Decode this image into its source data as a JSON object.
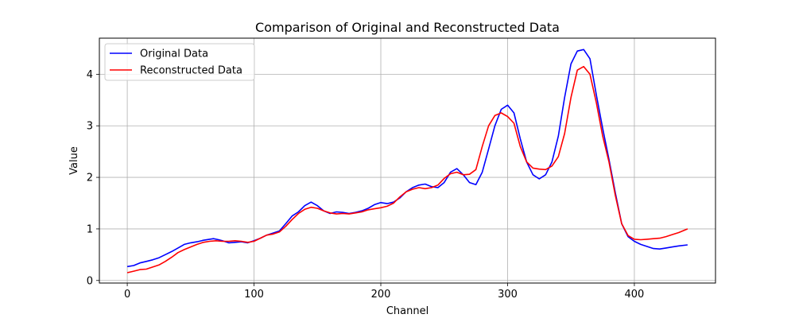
{
  "chart_data": {
    "type": "line",
    "title": "Comparison of Original and Reconstructed Data",
    "xlabel": "Channel",
    "ylabel": "Value",
    "xlim": [
      -22,
      464
    ],
    "ylim": [
      -0.05,
      4.7
    ],
    "grid": true,
    "legend_position": "top-left",
    "x_ticks": [
      0,
      100,
      200,
      300,
      400
    ],
    "y_ticks": [
      0,
      1,
      2,
      3,
      4
    ],
    "series": [
      {
        "name": "Original Data",
        "color": "#0000ff",
        "x": [
          0,
          5,
          10,
          15,
          20,
          25,
          30,
          35,
          40,
          45,
          50,
          55,
          60,
          65,
          68,
          72,
          75,
          80,
          85,
          90,
          95,
          100,
          105,
          110,
          115,
          120,
          125,
          130,
          135,
          140,
          145,
          150,
          155,
          160,
          165,
          170,
          175,
          180,
          185,
          190,
          195,
          200,
          205,
          210,
          215,
          220,
          225,
          230,
          235,
          240,
          245,
          250,
          255,
          260,
          265,
          270,
          275,
          280,
          285,
          290,
          295,
          300,
          305,
          310,
          315,
          320,
          325,
          330,
          335,
          340,
          345,
          350,
          355,
          360,
          365,
          370,
          375,
          380,
          385,
          390,
          395,
          400,
          405,
          410,
          415,
          420,
          425,
          430,
          435,
          442
        ],
        "values": [
          0.27,
          0.29,
          0.34,
          0.37,
          0.4,
          0.44,
          0.5,
          0.56,
          0.63,
          0.7,
          0.73,
          0.75,
          0.78,
          0.8,
          0.81,
          0.79,
          0.77,
          0.73,
          0.74,
          0.75,
          0.73,
          0.77,
          0.82,
          0.88,
          0.92,
          0.96,
          1.1,
          1.25,
          1.33,
          1.45,
          1.52,
          1.45,
          1.35,
          1.3,
          1.33,
          1.32,
          1.3,
          1.32,
          1.35,
          1.4,
          1.47,
          1.51,
          1.49,
          1.52,
          1.6,
          1.72,
          1.8,
          1.85,
          1.87,
          1.82,
          1.8,
          1.9,
          2.1,
          2.17,
          2.05,
          1.9,
          1.86,
          2.1,
          2.55,
          3.0,
          3.32,
          3.4,
          3.25,
          2.75,
          2.3,
          2.05,
          1.97,
          2.05,
          2.3,
          2.8,
          3.55,
          4.2,
          4.45,
          4.48,
          4.3,
          3.6,
          2.95,
          2.35,
          1.7,
          1.1,
          0.85,
          0.76,
          0.7,
          0.66,
          0.62,
          0.61,
          0.63,
          0.65,
          0.67,
          0.69
        ]
      },
      {
        "name": "Reconstructed Data",
        "color": "#ff0000",
        "x": [
          0,
          5,
          10,
          15,
          20,
          25,
          30,
          35,
          40,
          45,
          50,
          55,
          60,
          65,
          70,
          75,
          80,
          85,
          90,
          95,
          100,
          105,
          110,
          115,
          120,
          125,
          130,
          135,
          140,
          145,
          150,
          155,
          160,
          165,
          170,
          175,
          180,
          185,
          190,
          195,
          200,
          205,
          210,
          215,
          220,
          225,
          230,
          235,
          240,
          245,
          250,
          255,
          260,
          265,
          270,
          275,
          280,
          285,
          290,
          295,
          300,
          305,
          310,
          315,
          320,
          325,
          330,
          335,
          340,
          345,
          350,
          355,
          360,
          365,
          370,
          375,
          380,
          385,
          390,
          395,
          400,
          405,
          410,
          415,
          420,
          425,
          430,
          435,
          442
        ],
        "values": [
          0.15,
          0.18,
          0.21,
          0.22,
          0.26,
          0.3,
          0.37,
          0.45,
          0.54,
          0.6,
          0.65,
          0.7,
          0.74,
          0.76,
          0.77,
          0.76,
          0.76,
          0.77,
          0.76,
          0.74,
          0.76,
          0.82,
          0.88,
          0.9,
          0.94,
          1.05,
          1.18,
          1.3,
          1.38,
          1.42,
          1.4,
          1.35,
          1.31,
          1.29,
          1.3,
          1.29,
          1.31,
          1.33,
          1.37,
          1.39,
          1.41,
          1.44,
          1.5,
          1.62,
          1.72,
          1.77,
          1.8,
          1.78,
          1.8,
          1.85,
          1.98,
          2.07,
          2.1,
          2.05,
          2.06,
          2.15,
          2.6,
          3.0,
          3.2,
          3.25,
          3.18,
          3.05,
          2.6,
          2.3,
          2.18,
          2.16,
          2.15,
          2.22,
          2.4,
          2.85,
          3.55,
          4.08,
          4.15,
          4.0,
          3.45,
          2.8,
          2.3,
          1.65,
          1.1,
          0.87,
          0.8,
          0.79,
          0.8,
          0.81,
          0.82,
          0.85,
          0.89,
          0.93,
          1.0
        ]
      }
    ]
  }
}
